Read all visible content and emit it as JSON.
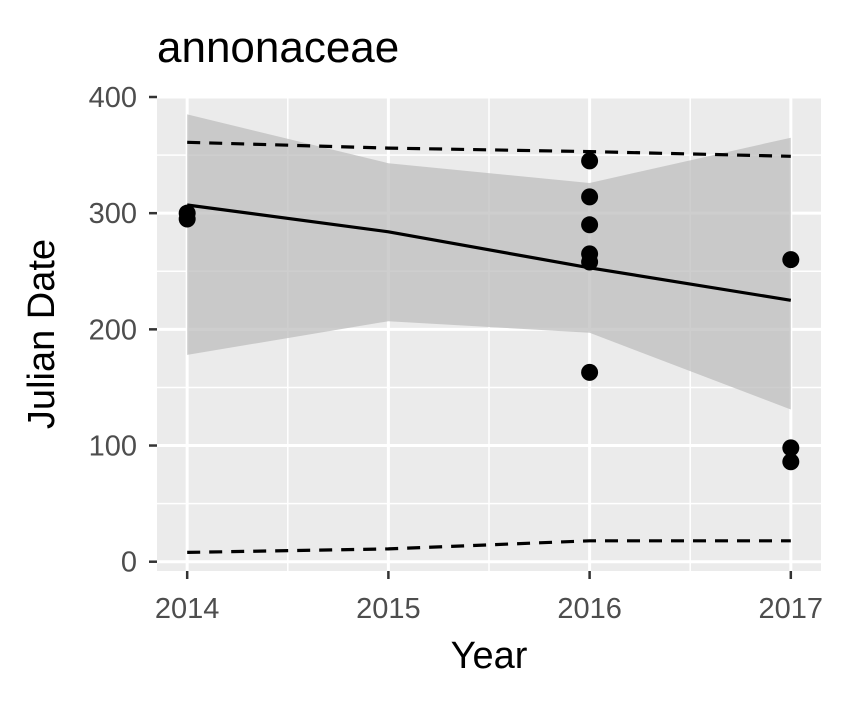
{
  "chart_data": {
    "type": "scatter",
    "title": "annonaceae",
    "xlabel": "Year",
    "ylabel": "Julian Date",
    "xlim": [
      2013.85,
      2017.15
    ],
    "ylim": [
      -8,
      400
    ],
    "x_ticks": [
      2014,
      2015,
      2016,
      2017
    ],
    "y_ticks": [
      0,
      100,
      200,
      300,
      400
    ],
    "grid": true,
    "legend": "none",
    "colors": {
      "panel": "#ebebeb",
      "grid": "#ffffff",
      "points": "#000000",
      "ribbon": "#bdbdbd",
      "tick_text": "#4d4d4d"
    },
    "points": [
      {
        "x": 2014,
        "y": 300
      },
      {
        "x": 2014,
        "y": 295
      },
      {
        "x": 2016,
        "y": 345
      },
      {
        "x": 2016,
        "y": 314
      },
      {
        "x": 2016,
        "y": 290
      },
      {
        "x": 2016,
        "y": 265
      },
      {
        "x": 2016,
        "y": 258
      },
      {
        "x": 2016,
        "y": 163
      },
      {
        "x": 2017,
        "y": 260
      },
      {
        "x": 2017,
        "y": 98
      },
      {
        "x": 2017,
        "y": 86
      }
    ],
    "fit_line": [
      {
        "x": 2014,
        "y": 307
      },
      {
        "x": 2015,
        "y": 284
      },
      {
        "x": 2016,
        "y": 253
      },
      {
        "x": 2017,
        "y": 225
      }
    ],
    "confidence_band": [
      {
        "x": 2014,
        "lower": 178,
        "upper": 385
      },
      {
        "x": 2015,
        "lower": 207,
        "upper": 343
      },
      {
        "x": 2016,
        "lower": 197,
        "upper": 326
      },
      {
        "x": 2017,
        "lower": 131,
        "upper": 365
      }
    ],
    "upper_dashed": [
      {
        "x": 2014,
        "y": 361
      },
      {
        "x": 2015,
        "y": 356
      },
      {
        "x": 2016,
        "y": 353
      },
      {
        "x": 2017,
        "y": 349
      }
    ],
    "lower_dashed": [
      {
        "x": 2014,
        "y": 8
      },
      {
        "x": 2015,
        "y": 11
      },
      {
        "x": 2016,
        "y": 18
      },
      {
        "x": 2017,
        "y": 18
      }
    ]
  }
}
